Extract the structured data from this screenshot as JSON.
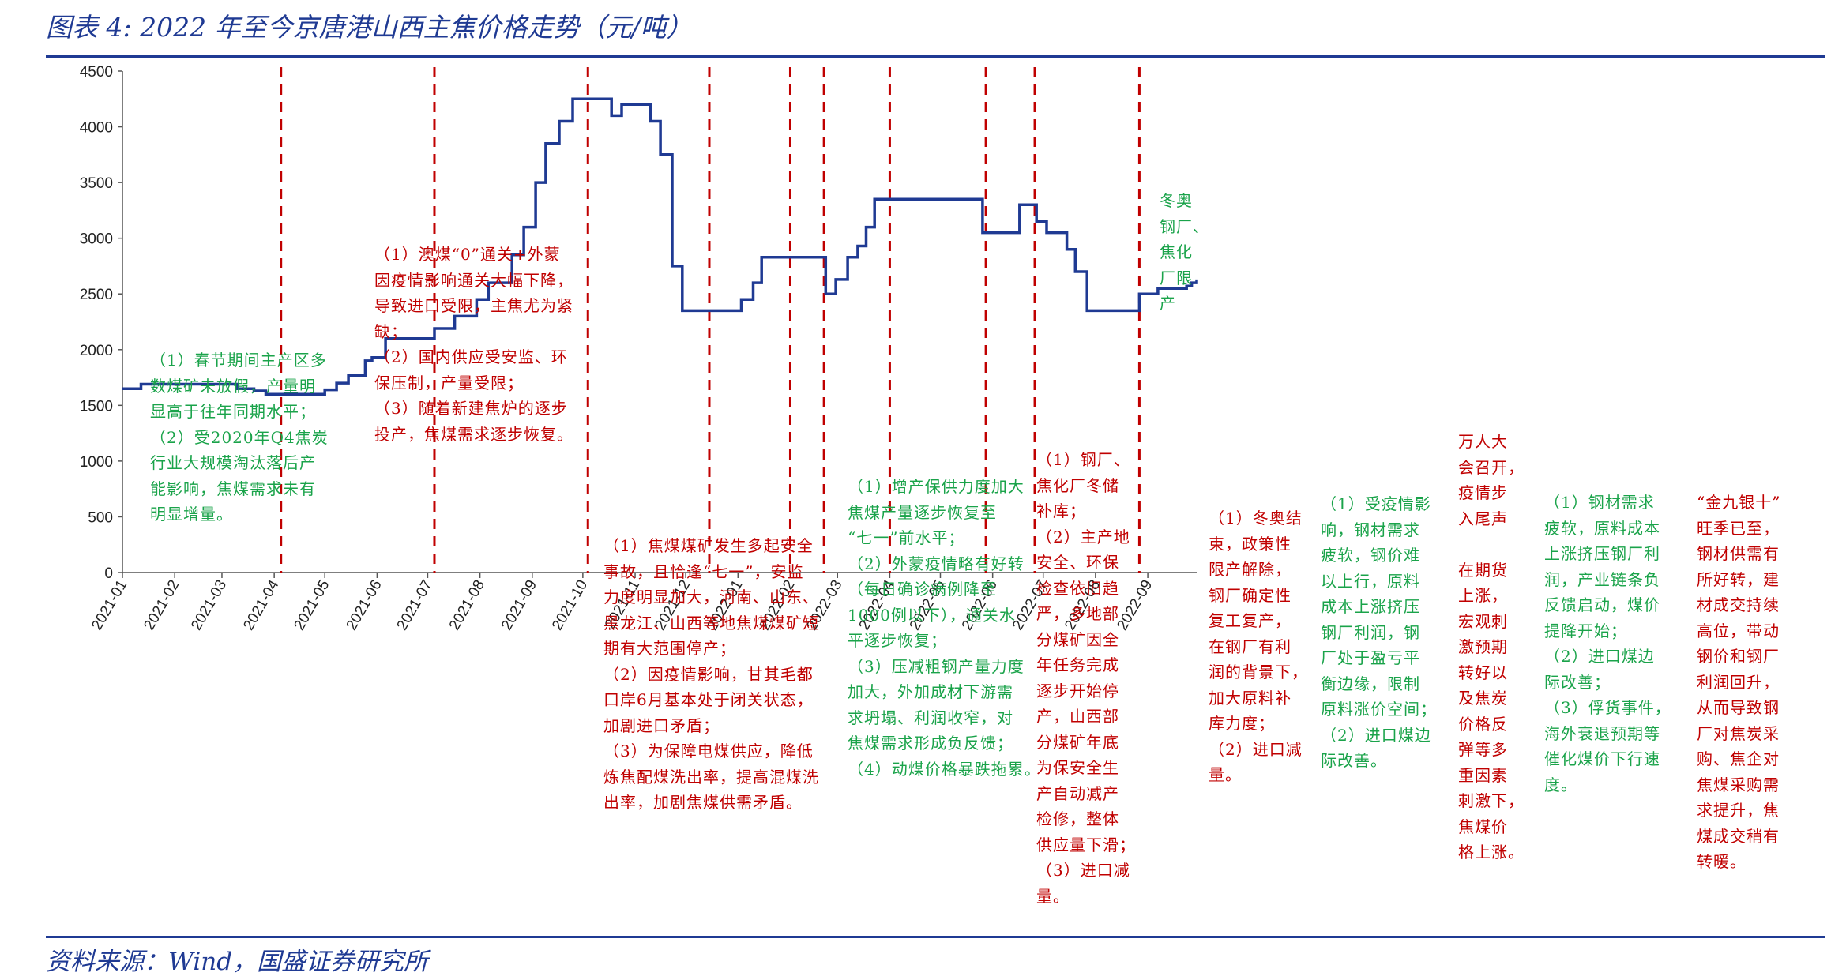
{
  "title": "图表 4:  2022 年至今京唐港山西主焦价格走势（元/吨）",
  "source": "资料来源：Wind，国盛证券研究所",
  "colors": {
    "line": "#1f3a93",
    "divider": "#c00000",
    "red_text": "#c00000",
    "green_text": "#1aa34a",
    "rule": "#1f3a93"
  },
  "chart_data": {
    "type": "line",
    "title": "",
    "xlabel": "",
    "ylabel": "",
    "ylim": [
      0,
      4500
    ],
    "yticks": [
      0,
      500,
      1000,
      1500,
      2000,
      2500,
      3000,
      3500,
      4000,
      4500
    ],
    "xlim": [
      "2021-01-01",
      "2022-09-30"
    ],
    "xticks": [
      "2021-01",
      "2021-02",
      "2021-03",
      "2021-04",
      "2021-05",
      "2021-06",
      "2021-07",
      "2021-08",
      "2021-09",
      "2021-10",
      "2021-11",
      "2021-12",
      "2022-01",
      "2022-02",
      "2022-03",
      "2022-04",
      "2022-05",
      "2022-06",
      "2022-07",
      "2022-08",
      "2022-09"
    ],
    "grid": false,
    "step": true,
    "series": [
      {
        "points": [
          [
            "2021-01-01",
            1650
          ],
          [
            "2021-01-12",
            1690
          ],
          [
            "2021-02-01",
            1690
          ],
          [
            "2021-03-05",
            1690
          ],
          [
            "2021-03-10",
            1650
          ],
          [
            "2021-03-20",
            1630
          ],
          [
            "2021-03-27",
            1600
          ],
          [
            "2021-04-01",
            1600
          ],
          [
            "2021-04-28",
            1600
          ],
          [
            "2021-05-01",
            1640
          ],
          [
            "2021-05-08",
            1700
          ],
          [
            "2021-05-15",
            1770
          ],
          [
            "2021-05-25",
            1900
          ],
          [
            "2021-05-29",
            1930
          ],
          [
            "2021-06-06",
            2100
          ],
          [
            "2021-07-01",
            2100
          ],
          [
            "2021-07-05",
            2190
          ],
          [
            "2021-07-17",
            2300
          ],
          [
            "2021-07-30",
            2450
          ],
          [
            "2021-08-06",
            2600
          ],
          [
            "2021-08-20",
            2850
          ],
          [
            "2021-08-27",
            3100
          ],
          [
            "2021-09-03",
            3500
          ],
          [
            "2021-09-09",
            3850
          ],
          [
            "2021-09-17",
            4050
          ],
          [
            "2021-09-25",
            4250
          ],
          [
            "2021-10-01",
            4250
          ],
          [
            "2021-10-15",
            4250
          ],
          [
            "2021-10-18",
            4100
          ],
          [
            "2021-10-24",
            4200
          ],
          [
            "2021-11-05",
            4200
          ],
          [
            "2021-11-10",
            4050
          ],
          [
            "2021-11-16",
            3750
          ],
          [
            "2021-11-23",
            2750
          ],
          [
            "2021-11-29",
            2350
          ],
          [
            "2021-12-01",
            2350
          ],
          [
            "2022-01-01",
            2350
          ],
          [
            "2022-01-03",
            2450
          ],
          [
            "2022-01-10",
            2600
          ],
          [
            "2022-01-15",
            2830
          ],
          [
            "2022-02-01",
            2830
          ],
          [
            "2022-02-19",
            2830
          ],
          [
            "2022-02-22",
            2500
          ],
          [
            "2022-02-28",
            2630
          ],
          [
            "2022-03-07",
            2830
          ],
          [
            "2022-03-13",
            2930
          ],
          [
            "2022-03-18",
            3100
          ],
          [
            "2022-03-23",
            3350
          ],
          [
            "2022-04-01",
            3350
          ],
          [
            "2022-05-01",
            3350
          ],
          [
            "2022-05-23",
            3350
          ],
          [
            "2022-05-26",
            3050
          ],
          [
            "2022-06-01",
            3050
          ],
          [
            "2022-06-15",
            3050
          ],
          [
            "2022-06-17",
            3300
          ],
          [
            "2022-06-25",
            3300
          ],
          [
            "2022-06-27",
            3150
          ],
          [
            "2022-07-01",
            3150
          ],
          [
            "2022-07-03",
            3050
          ],
          [
            "2022-07-12",
            3050
          ],
          [
            "2022-07-15",
            2900
          ],
          [
            "2022-07-20",
            2700
          ],
          [
            "2022-07-27",
            2350
          ],
          [
            "2022-08-01",
            2350
          ],
          [
            "2022-08-26",
            2350
          ],
          [
            "2022-08-27",
            2500
          ],
          [
            "2022-09-07",
            2550
          ],
          [
            "2022-09-24",
            2570
          ],
          [
            "2022-09-27",
            2600
          ],
          [
            "2022-09-30",
            2630
          ]
        ]
      }
    ],
    "dividers": [
      "2021-04-05",
      "2021-07-05",
      "2021-10-04",
      "2021-12-15",
      "2022-02-01",
      "2022-02-21",
      "2022-04-01",
      "2022-05-28",
      "2022-06-26",
      "2022-08-27"
    ],
    "annotations": [
      {
        "color": "green",
        "text": "（1）春节期间主产区多\n数煤矿未放假，产量明\n显高于往年同期水平；\n（2）受2020年Q4焦炭\n行业大规模淘汰落后产\n能影响，焦煤需求未有\n明显增量。"
      },
      {
        "color": "red",
        "text": "（1）澳煤“0”通关+外蒙\n因疫情影响通关大幅下降，\n导致进口受限，主焦尤为紧\n缺；\n（2）国内供应受安监、环\n保压制，产量受限；\n（3）随着新建焦炉的逐步\n投产，焦煤需求逐步恢复。"
      },
      {
        "color": "red",
        "text": "（1）焦煤煤矿发生多起安全\n事故，且恰逢“七一”，安监\n力度明显加大，河南、山东、\n黑龙江、山西等地焦煤煤矿短\n期有大范围停产；\n（2）因疫情影响，甘其毛都\n口岸6月基本处于闭关状态，\n加剧进口矛盾；\n（3）为保障电煤供应，降低\n炼焦配煤洗出率，提高混煤洗\n出率，加剧焦煤供需矛盾。"
      },
      {
        "color": "green",
        "text": "（1）增产保供力度加大\n焦煤产量逐步恢复至\n“七一”前水平；\n（2）外蒙疫情略有好转\n（每日确诊病例降至\n1000例以下），通关水\n平逐步恢复；\n（3）压减粗钢产量力度\n加大，外加成材下游需\n求坍塌、利润收窄，对\n焦煤需求形成负反馈；\n（4）动煤价格暴跌拖累。"
      },
      {
        "color": "red",
        "text": "（1）钢厂、\n焦化厂冬储\n补库；\n（2）主产地\n安全、环保\n检查依旧趋\n严，多地部\n分煤矿因全\n年任务完成\n逐步开始停\n产，山西部\n分煤矿年底\n为保安全生\n产自动减产\n检修，整体\n供应量下滑；\n（3）进口减\n量。"
      },
      {
        "color": "green",
        "text": "冬奥\n钢厂、\n焦化\n厂限\n产"
      },
      {
        "color": "red",
        "text": "（1）冬奥结\n束，政策性\n限产解除，\n钢厂确定性\n复工复产，\n在钢厂有利\n润的背景下，\n加大原料补\n库力度；\n（2）进口减\n量。"
      },
      {
        "color": "green",
        "text": "（1）受疫情影\n响，钢材需求\n疲软，钢价难\n以上行，原料\n成本上涨挤压\n钢厂利润，钢\n厂处于盈亏平\n衡边缘，限制\n原料涨价空间；\n（2）进口煤边\n际改善。"
      },
      {
        "color": "red",
        "text": "万人大\n会召开，\n疫情步\n入尾声\n\n在期货\n上涨，\n宏观刺\n激预期\n转好以\n及焦炭\n价格反\n弹等多\n重因素\n刺激下，\n焦煤价\n格上涨。"
      },
      {
        "color": "green",
        "text": "（1）钢材需求\n疲软，原料成本\n上涨挤压钢厂利\n润，产业链条负\n反馈启动，煤价\n提降开始；\n（2）进口煤边\n际改善；\n（3）俘货事件，\n海外衰退预期等\n催化煤价下行速\n度。"
      },
      {
        "color": "red",
        "text": "“金九银十”\n旺季已至，\n钢材供需有\n所好转，建\n材成交持续\n高位，带动\n钢价和钢厂\n利润回升，\n从而导致钢\n厂对焦炭采\n购、焦企对\n焦煤采购需\n求提升，焦\n煤成交稍有\n转暖。"
      }
    ]
  }
}
